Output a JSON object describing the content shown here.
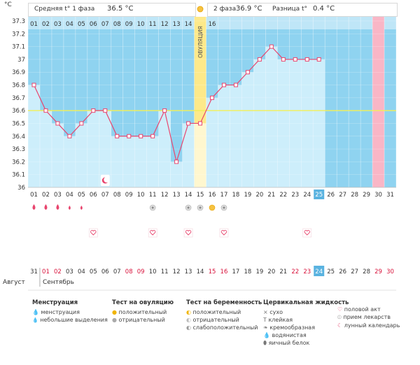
{
  "header": {
    "unit": "°C",
    "phase1_label": "Средняя t° 1 фаза",
    "phase1_value": "36.5 °C",
    "phase2_label": "2 фаза",
    "phase2_value": "36.9 °C",
    "diff_label": "Разница t°",
    "diff_value": "0.4 °C",
    "ovulation_label": "ОВУЛЯЦИЯ"
  },
  "chart_data": {
    "type": "line",
    "ylabel": "°C",
    "ylim": [
      36.0,
      37.3
    ],
    "yticks": [
      "36",
      "36.1",
      "36.2",
      "36.3",
      "36.4",
      "36.5",
      "36.6",
      "36.7",
      "36.8",
      "36.9",
      "37",
      "37.1",
      "37.2",
      "37.3"
    ],
    "cycle_days": [
      "01",
      "02",
      "03",
      "04",
      "05",
      "06",
      "07",
      "08",
      "09",
      "10",
      "11",
      "12",
      "13",
      "14",
      "15",
      "16",
      "17",
      "18",
      "19",
      "20",
      "21",
      "22",
      "23",
      "24",
      "25",
      "26",
      "27",
      "28",
      "29",
      "30",
      "31"
    ],
    "top_days": [
      "01",
      "02",
      "03",
      "04",
      "05",
      "06",
      "07",
      "08",
      "09",
      "10",
      "11",
      "12",
      "13",
      "14",
      "15",
      "16"
    ],
    "temperatures": [
      36.8,
      36.6,
      36.5,
      36.4,
      36.5,
      36.6,
      36.6,
      36.4,
      36.4,
      36.4,
      36.4,
      36.6,
      36.2,
      36.5,
      36.5,
      36.7,
      36.8,
      36.8,
      36.9,
      37.0,
      37.1,
      37.0,
      37.0,
      37.0,
      37.0,
      null,
      null,
      null,
      null,
      null,
      null
    ],
    "coverline": 36.6,
    "ovulation_day": 15,
    "today_day": 25,
    "highlight_day": 30,
    "grid": true
  },
  "calendar": {
    "month1": "Август",
    "month2": "Сентябрь",
    "dates": [
      "31",
      "01",
      "02",
      "03",
      "04",
      "05",
      "06",
      "07",
      "08",
      "09",
      "10",
      "11",
      "12",
      "13",
      "14",
      "15",
      "16",
      "17",
      "18",
      "19",
      "20",
      "21",
      "22",
      "23",
      "24",
      "25",
      "26",
      "27",
      "28",
      "29",
      "30"
    ],
    "red_days": [
      2,
      3,
      9,
      10,
      16,
      17,
      23,
      24,
      30,
      31
    ],
    "today_index": 25
  },
  "markers": {
    "moon_day": 7,
    "menses_heavy_days": [
      1,
      2,
      3
    ],
    "menses_light_days": [
      4,
      5
    ],
    "ovu_negative_days": [
      11,
      14,
      15,
      17
    ],
    "ovu_positive_day": 16,
    "intercourse_days": [
      6,
      11,
      14,
      17,
      24
    ]
  },
  "legend": {
    "menstruation": {
      "title": "Менструация",
      "items": [
        "менструация",
        "небольшие выделения"
      ]
    },
    "ovulation_test": {
      "title": "Тест на овуляцию",
      "items": [
        "положительный",
        "отрицательный"
      ]
    },
    "pregnancy_test": {
      "title": "Тест на беременность",
      "items": [
        "положительный",
        "отрицательный",
        "слабоположительный"
      ]
    },
    "cervical": {
      "title": "Цервикальная жидкость",
      "items": [
        "сухо",
        "клейкая",
        "кремообразная",
        "водянистая",
        "яичный белок"
      ]
    },
    "other": {
      "items": [
        "половой акт",
        "прием лекарств",
        "лунный календарь"
      ]
    }
  },
  "colors": {
    "bg_blue": "#8fd3f0",
    "fill_light": "#cdeefb",
    "line": "#e8456e",
    "ovulation": "#fde98a",
    "pink": "#f9b6c6",
    "today": "#5ab3e0",
    "coverline": "#f3ef55"
  }
}
